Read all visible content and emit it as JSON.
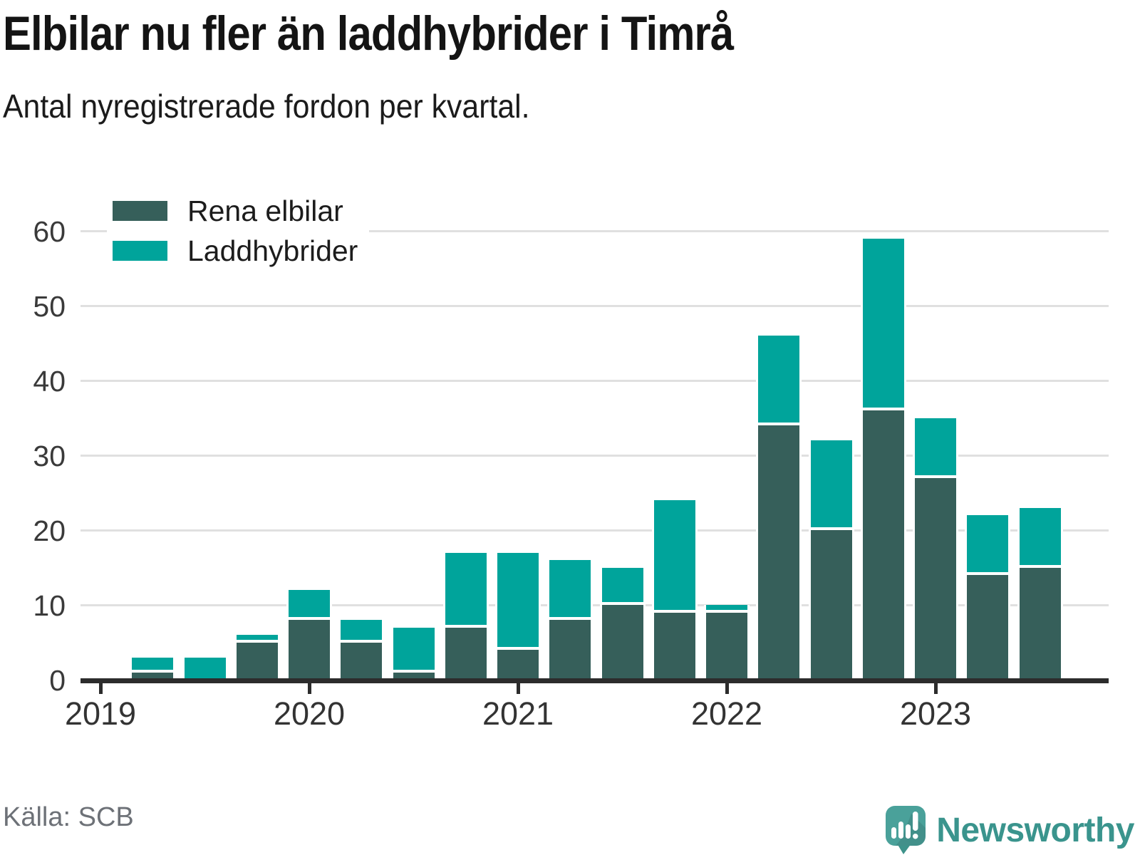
{
  "title": "Elbilar nu fler än laddhybrider i Timrå",
  "subtitle": "Antal nyregistrerade fordon per kvartal.",
  "source": "Källa: SCB",
  "brand": {
    "name": "Newsworthy"
  },
  "legend": {
    "items": [
      {
        "label": "Rena elbilar",
        "color": "#365f5a"
      },
      {
        "label": "Laddhybrider",
        "color": "#00a49b"
      }
    ]
  },
  "colors": {
    "elbilar": "#365f5a",
    "laddhybrider": "#00a49b",
    "axis": "#2c2c2c",
    "gridline": "#e0e0e0",
    "brand_teal": "#3a948d",
    "icon_teal": "#4aa19a"
  },
  "chart_data": {
    "type": "bar",
    "stacked": true,
    "title": "Elbilar nu fler än laddhybrider i Timrå",
    "subtitle": "Antal nyregistrerade fordon per kvartal.",
    "categories": [
      "2019 kv1",
      "2019 kv2",
      "2019 kv3",
      "2019 kv4",
      "2020 kv1",
      "2020 kv2",
      "2020 kv3",
      "2020 kv4",
      "2021 kv1",
      "2021 kv2",
      "2021 kv3",
      "2021 kv4",
      "2022 kv1",
      "2022 kv2",
      "2022 kv3",
      "2022 kv4",
      "2023 kv1",
      "2023 kv2",
      "2023 kv3"
    ],
    "series": [
      {
        "name": "Rena elbilar",
        "color": "#365f5a",
        "values": [
          0,
          1,
          0,
          5,
          8,
          5,
          1,
          7,
          4,
          8,
          10,
          9,
          9,
          34,
          20,
          36,
          27,
          14,
          15
        ]
      },
      {
        "name": "Laddhybrider",
        "color": "#00a49b",
        "values": [
          0,
          2,
          3,
          1,
          4,
          3,
          6,
          10,
          13,
          8,
          5,
          15,
          1,
          12,
          12,
          23,
          8,
          8,
          8
        ]
      }
    ],
    "totals": [
      0,
      3,
      3,
      6,
      12,
      8,
      7,
      17,
      17,
      16,
      15,
      24,
      10,
      46,
      32,
      59,
      35,
      22,
      23
    ],
    "x_tick_labels": [
      "2019",
      "2020",
      "2021",
      "2022",
      "2023"
    ],
    "y_ticks": [
      0,
      10,
      20,
      30,
      40,
      50,
      60
    ],
    "ylim": [
      0,
      62
    ],
    "grid": "horizontal",
    "legend_position": "top-left"
  }
}
